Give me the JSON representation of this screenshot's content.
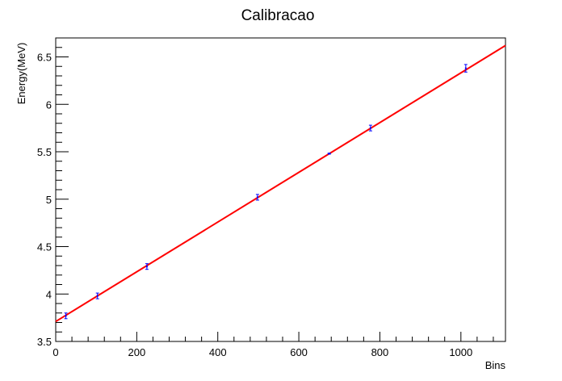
{
  "chart_data": {
    "type": "scatter",
    "title": "Calibracao",
    "xlabel": "Bins",
    "ylabel": "Energy(MeV)",
    "xlim": [
      0,
      1110
    ],
    "ylim": [
      3.5,
      6.7
    ],
    "x_ticks": [
      0,
      200,
      400,
      600,
      800,
      1000
    ],
    "x_tick_labels": [
      "0",
      "200",
      "400",
      "600",
      "800",
      "1000"
    ],
    "y_ticks": [
      3.5,
      4,
      4.5,
      5,
      5.5,
      6,
      6.5
    ],
    "y_tick_labels": [
      "3.5",
      "4",
      "4.5",
      "5",
      "5.5",
      "6",
      "6.5"
    ],
    "grid": false,
    "series": [
      {
        "type": "points-with-errors",
        "color": "#0000ff",
        "x": [
          25,
          103,
          225,
          498,
          675,
          777,
          1012
        ],
        "y": [
          3.77,
          3.98,
          4.29,
          5.02,
          5.48,
          5.75,
          6.38
        ],
        "yerr": [
          0.03,
          0.03,
          0.03,
          0.03,
          0.005,
          0.03,
          0.04
        ]
      },
      {
        "type": "fit-line",
        "color": "#ff0000",
        "x": [
          0,
          1110
        ],
        "y": [
          3.71,
          6.62
        ]
      }
    ]
  }
}
